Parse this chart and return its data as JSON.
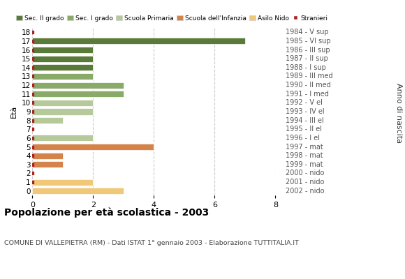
{
  "ages": [
    18,
    17,
    16,
    15,
    14,
    13,
    12,
    11,
    10,
    9,
    8,
    7,
    6,
    5,
    4,
    3,
    2,
    1,
    0
  ],
  "right_labels": [
    "1984 - V sup",
    "1985 - VI sup",
    "1986 - III sup",
    "1987 - II sup",
    "1988 - I sup",
    "1989 - III med",
    "1990 - II med",
    "1991 - I med",
    "1992 - V el",
    "1993 - IV el",
    "1994 - III el",
    "1995 - II el",
    "1996 - I el",
    "1997 - mat",
    "1998 - mat",
    "1999 - mat",
    "2000 - nido",
    "2001 - nido",
    "2002 - nido"
  ],
  "bar_values": [
    0,
    7,
    2,
    2,
    2,
    2,
    3,
    3,
    2,
    2,
    1,
    0,
    2,
    4,
    1,
    1,
    0,
    2,
    3
  ],
  "bar_colors": [
    "#5a7a3a",
    "#5a7a3a",
    "#5a7a3a",
    "#5a7a3a",
    "#5a7a3a",
    "#8aaa6a",
    "#8aaa6a",
    "#8aaa6a",
    "#b5c99a",
    "#b5c99a",
    "#b5c99a",
    "#b5c99a",
    "#b5c99a",
    "#d4834a",
    "#d4834a",
    "#d4834a",
    "#f0c878",
    "#f0c878",
    "#f0c878"
  ],
  "stranieri_marker": [
    true,
    true,
    true,
    true,
    true,
    true,
    true,
    true,
    true,
    true,
    true,
    true,
    true,
    true,
    true,
    true,
    true,
    true,
    false
  ],
  "stranieri_color": "#aa2222",
  "title": "Popolazione per età scolastica - 2003",
  "subtitle": "COMUNE DI VALLEPIETRA (RM) - Dati ISTAT 1° gennaio 2003 - Elaborazione TUTTITALIA.IT",
  "eta_label": "Età",
  "ylabel": "Anno di nascita",
  "xlim": [
    0,
    8
  ],
  "xticks": [
    0,
    2,
    4,
    6,
    8
  ],
  "legend_entries": [
    {
      "label": "Sec. II grado",
      "color": "#5a7a3a"
    },
    {
      "label": "Sec. I grado",
      "color": "#8aaa6a"
    },
    {
      "label": "Scuola Primaria",
      "color": "#b5c99a"
    },
    {
      "label": "Scuola dell'Infanzia",
      "color": "#d4834a"
    },
    {
      "label": "Asilo Nido",
      "color": "#f0c878"
    },
    {
      "label": "Stranieri",
      "color": "#aa2222"
    }
  ],
  "bg_color": "#ffffff",
  "grid_color": "#cccccc"
}
